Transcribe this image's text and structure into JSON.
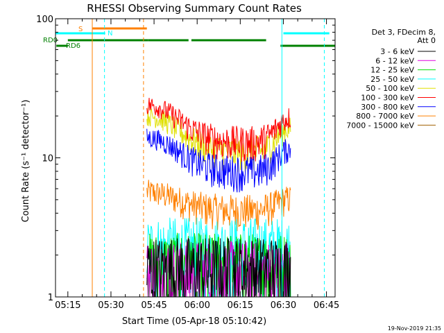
{
  "chart_data": {
    "type": "line",
    "title": "RHESSI Observing Summary Count Rates",
    "xlabel": "Start Time (05-Apr-18 05:10:42)",
    "ylabel": "Count Rate (s⁻¹ detector⁻¹)",
    "yscale": "log",
    "ylim": [
      1,
      100
    ],
    "xlim": [
      "05:10:42",
      "06:48:00"
    ],
    "y_ticks": [
      "1",
      "10",
      "100"
    ],
    "x_ticks": [
      "05:15",
      "05:30",
      "05:45",
      "06:00",
      "06:15",
      "06:30",
      "06:45"
    ],
    "legend_header": [
      "Det 3, FDecim 8,",
      "Att 0"
    ],
    "legend_position": "right",
    "footer_date": "19-Nov-2019 21:35",
    "data_gap": [
      "05:10:42",
      "05:42:30"
    ],
    "series": [
      {
        "name": "3 - 6 keV",
        "color": "#000000",
        "level": 1.6,
        "peak": 0
      },
      {
        "name": "6 - 12 keV",
        "color": "#e000e0",
        "level": 1.5,
        "peak": 0
      },
      {
        "name": "12 - 25 keV",
        "color": "#00e000",
        "level": 1.7,
        "peak": 0
      },
      {
        "name": "25 - 50 keV",
        "color": "#00ffff",
        "level": 2.2,
        "peak": 0
      },
      {
        "name": "50 - 100 keV",
        "color": "#e0e000",
        "level": 11,
        "peak": 9
      },
      {
        "name": "100 - 300 keV",
        "color": "#ff0000",
        "level": 13,
        "peak": 11
      },
      {
        "name": "300 - 800 keV",
        "color": "#0000ff",
        "level": 8,
        "peak": 6
      },
      {
        "name": "800 - 7000 keV",
        "color": "#ff8000",
        "level": 4.2,
        "peak": 1.5
      },
      {
        "name": "7000 - 15000 keV",
        "color": "#a06000",
        "level": 0,
        "peak": 0
      }
    ],
    "flags": [
      {
        "label": "S",
        "color": "#ff8000",
        "segments": [
          [
            "05:23:30",
            "05:42:30"
          ]
        ]
      },
      {
        "label": "N",
        "color": "#00ffff",
        "segments": [
          [
            "05:10:42",
            "05:28:00"
          ],
          [
            "06:30:00",
            "06:46:00"
          ]
        ]
      },
      {
        "label": "RD0",
        "color": "#008000",
        "segments": [
          [
            "05:15:00",
            "05:43:00"
          ],
          [
            "05:43:00",
            "05:57:00"
          ],
          [
            "05:58:00",
            "06:24:00"
          ]
        ]
      },
      {
        "label": "RD6",
        "color": "#008000",
        "segments": [
          [
            "05:11:00",
            "05:15:00"
          ],
          [
            "06:29:00",
            "06:48:00"
          ]
        ]
      }
    ],
    "vlines": [
      {
        "t": "05:10:42",
        "color": "#00ffff",
        "style": "solid"
      },
      {
        "t": "05:27:45",
        "color": "#00ffff",
        "style": "dashed"
      },
      {
        "t": "05:23:30",
        "color": "#ff8000",
        "style": "solid"
      },
      {
        "t": "05:41:20",
        "color": "#ff8000",
        "style": "dashed"
      },
      {
        "t": "06:29:30",
        "color": "#00ffff",
        "style": "solid"
      },
      {
        "t": "06:44:15",
        "color": "#00ffff",
        "style": "dashed"
      }
    ],
    "grid": false
  }
}
